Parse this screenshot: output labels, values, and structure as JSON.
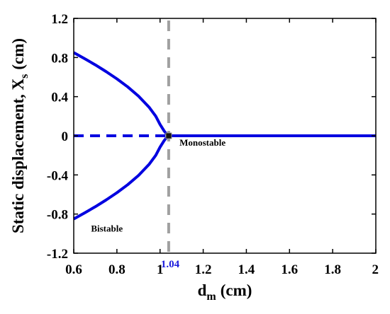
{
  "chart_data": {
    "type": "line",
    "xlabel": "d",
    "xlabel_sub": "m",
    "xlabel_unit": "(cm)",
    "ylabel": "Static displacement, X",
    "ylabel_sub": "s",
    "ylabel_unit": "(cm)",
    "xlim": [
      0.6,
      2.0
    ],
    "ylim": [
      -1.2,
      1.2
    ],
    "xticks": [
      "0.6",
      "0.8",
      "1",
      "1.2",
      "1.4",
      "1.6",
      "1.8",
      "2"
    ],
    "yticks": [
      "1.2",
      "0.8",
      "0.4",
      "0",
      "-0.4",
      "-0.8",
      "-1.2"
    ],
    "grid": false,
    "series": [
      {
        "style": "solid",
        "color": "#0000e0",
        "x": [
          0.6,
          0.65,
          0.7,
          0.75,
          0.8,
          0.85,
          0.9,
          0.95,
          0.98,
          1.0,
          1.02,
          1.03,
          1.035,
          1.04
        ],
        "y": [
          0.85,
          0.789,
          0.725,
          0.656,
          0.582,
          0.5,
          0.406,
          0.29,
          0.2,
          0.116,
          0.046,
          0.02,
          0.008,
          0.0
        ]
      },
      {
        "style": "solid",
        "color": "#0000e0",
        "x": [
          0.6,
          0.65,
          0.7,
          0.75,
          0.8,
          0.85,
          0.9,
          0.95,
          0.98,
          1.0,
          1.02,
          1.03,
          1.035,
          1.04
        ],
        "y": [
          -0.85,
          -0.789,
          -0.725,
          -0.656,
          -0.582,
          -0.5,
          -0.406,
          -0.29,
          -0.2,
          -0.116,
          -0.046,
          -0.02,
          -0.008,
          0.0
        ]
      },
      {
        "style": "dashed",
        "color": "#0000e0",
        "x": [
          0.6,
          1.04
        ],
        "y": [
          0,
          0
        ]
      },
      {
        "style": "solid",
        "color": "#0000e0",
        "x": [
          1.04,
          2.0
        ],
        "y": [
          0,
          0
        ]
      }
    ],
    "critical_line": {
      "x": 1.04,
      "label": "1.04",
      "color": "#a0a0a0"
    },
    "critical_point": {
      "x": 1.04,
      "y": 0
    },
    "annotations": [
      {
        "text": "Monostable",
        "x": 1.09,
        "y": -0.1
      },
      {
        "text": "Bistable",
        "x": 0.68,
        "y": -0.98
      }
    ]
  }
}
